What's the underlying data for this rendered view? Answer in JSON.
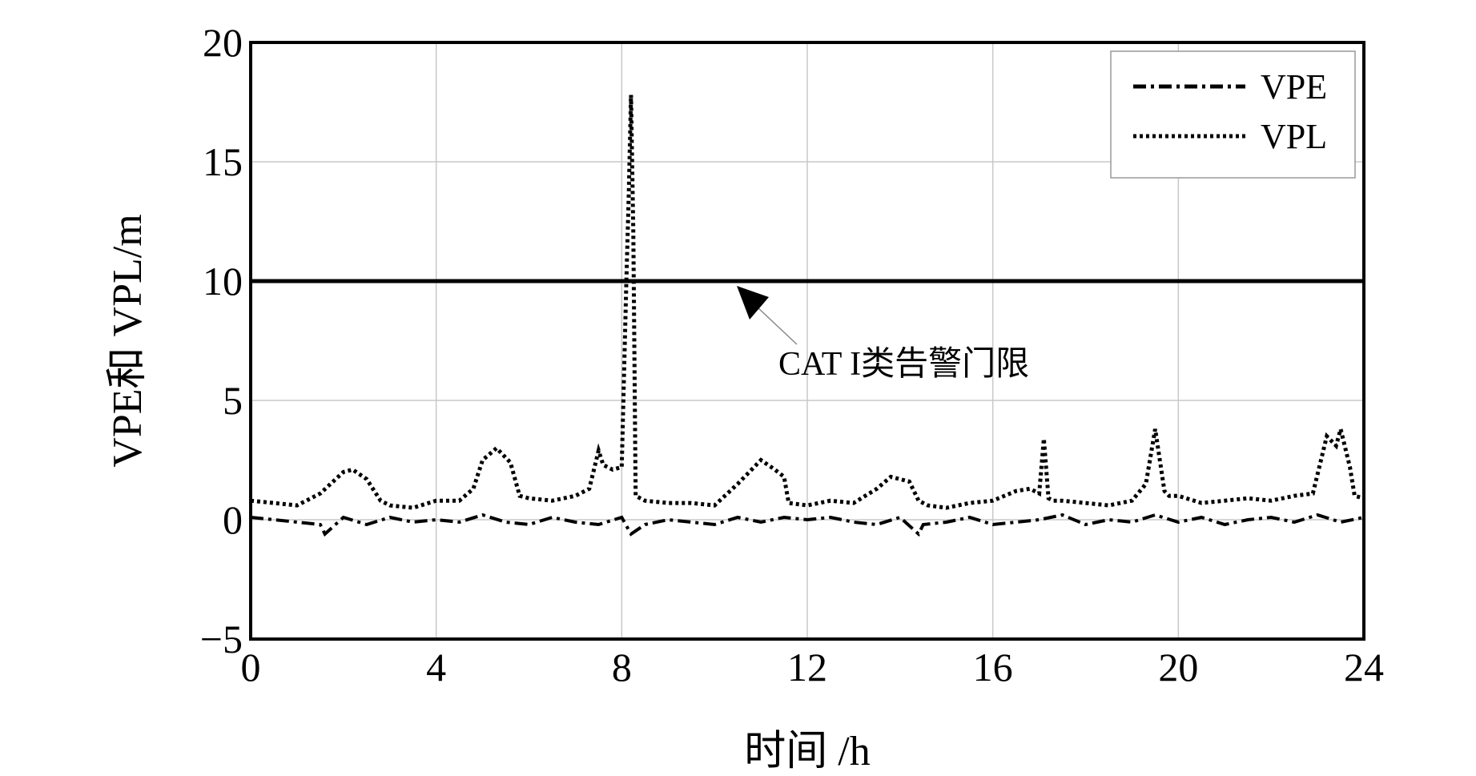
{
  "chart_data": {
    "type": "line",
    "xlabel": "时间 /h",
    "ylabel": "VPE和 VPL/m",
    "xlim": [
      0,
      24
    ],
    "ylim": [
      -5,
      20
    ],
    "xticks": [
      0,
      4,
      8,
      12,
      16,
      20,
      24
    ],
    "yticks": [
      -5,
      0,
      5,
      10,
      15,
      20
    ],
    "ytick_labels": [
      "−5",
      "0",
      "5",
      "10",
      "15",
      "20"
    ],
    "grid": true,
    "legend_position": "top-right",
    "colors": {
      "line": "#000000",
      "grid": "#c8c8c8"
    },
    "threshold": {
      "y": 10,
      "label": "CAT I类告警门限"
    },
    "series": [
      {
        "name": "VPE",
        "style": "dash-dot",
        "x": [
          0,
          0.5,
          1.0,
          1.5,
          1.6,
          2.0,
          2.5,
          3.0,
          3.5,
          4.0,
          4.5,
          5.0,
          5.5,
          6.0,
          6.5,
          7.0,
          7.5,
          8.0,
          8.2,
          8.5,
          9.0,
          9.5,
          10.0,
          10.5,
          11.0,
          11.5,
          12.0,
          12.5,
          13.0,
          13.5,
          14.0,
          14.4,
          14.5,
          15.0,
          15.5,
          16.0,
          16.5,
          17.0,
          17.5,
          18.0,
          18.5,
          19.0,
          19.5,
          20.0,
          20.5,
          21.0,
          21.5,
          22.0,
          22.5,
          23.0,
          23.5,
          24.0
        ],
        "values": [
          0.1,
          0.0,
          -0.1,
          -0.2,
          -0.6,
          0.1,
          -0.2,
          0.1,
          -0.1,
          0.0,
          -0.1,
          0.2,
          -0.1,
          -0.2,
          0.1,
          -0.1,
          -0.2,
          0.1,
          -0.6,
          -0.2,
          0.0,
          -0.1,
          -0.2,
          0.1,
          -0.1,
          0.1,
          0.0,
          0.1,
          -0.1,
          -0.2,
          0.1,
          -0.6,
          -0.2,
          -0.1,
          0.1,
          -0.2,
          -0.1,
          0.0,
          0.2,
          -0.2,
          0.0,
          -0.1,
          0.2,
          -0.1,
          0.1,
          -0.2,
          0.0,
          0.1,
          -0.1,
          0.2,
          -0.1,
          0.1
        ]
      },
      {
        "name": "VPL",
        "style": "dotted",
        "x": [
          0,
          0.5,
          1.0,
          1.5,
          2.0,
          2.2,
          2.5,
          2.8,
          3.0,
          3.5,
          4.0,
          4.5,
          4.8,
          5.0,
          5.3,
          5.6,
          5.8,
          6.0,
          6.5,
          7.0,
          7.3,
          7.5,
          7.6,
          7.8,
          8.0,
          8.1,
          8.15,
          8.2,
          8.25,
          8.3,
          8.4,
          8.5,
          9.0,
          9.5,
          10.0,
          10.5,
          11.0,
          11.3,
          11.5,
          11.6,
          12.0,
          12.5,
          13.0,
          13.5,
          13.8,
          14.2,
          14.4,
          14.6,
          15.0,
          15.5,
          16.0,
          16.5,
          16.8,
          17.0,
          17.1,
          17.2,
          17.3,
          17.5,
          18.0,
          18.5,
          19.0,
          19.3,
          19.5,
          19.7,
          19.8,
          20.0,
          20.5,
          21.0,
          21.5,
          22.0,
          22.5,
          22.9,
          23.2,
          23.4,
          23.5,
          23.7,
          23.8,
          24.0
        ],
        "values": [
          0.8,
          0.7,
          0.6,
          1.1,
          2.0,
          2.1,
          1.7,
          0.8,
          0.6,
          0.5,
          0.8,
          0.8,
          1.3,
          2.5,
          3.0,
          2.4,
          1.0,
          0.9,
          0.8,
          1.0,
          1.3,
          2.9,
          2.3,
          2.1,
          2.2,
          10.0,
          13.5,
          17.8,
          12.0,
          1.0,
          0.9,
          0.8,
          0.7,
          0.7,
          0.6,
          1.5,
          2.5,
          2.1,
          1.8,
          0.7,
          0.6,
          0.8,
          0.7,
          1.3,
          1.8,
          1.6,
          0.8,
          0.6,
          0.5,
          0.7,
          0.8,
          1.2,
          1.3,
          1.1,
          3.4,
          0.9,
          0.8,
          0.8,
          0.7,
          0.6,
          0.8,
          1.5,
          3.8,
          1.2,
          1.0,
          1.0,
          0.7,
          0.8,
          0.9,
          0.8,
          1.0,
          1.1,
          3.5,
          3.1,
          3.8,
          2.2,
          1.0,
          0.9
        ]
      }
    ]
  }
}
